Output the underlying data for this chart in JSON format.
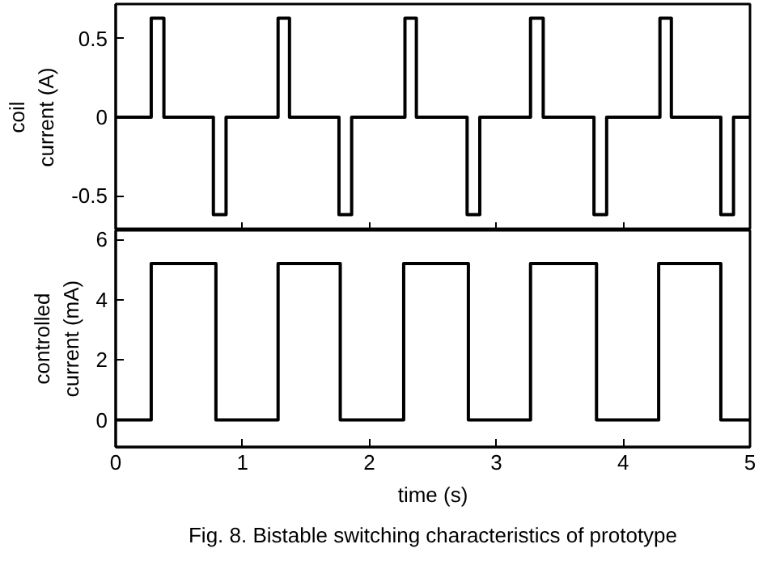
{
  "chart_data": [
    {
      "type": "line",
      "ylabel": "coil\ncurrent (A)",
      "xlim": [
        0,
        5
      ],
      "xticks": [
        0,
        1,
        2,
        3,
        4,
        5
      ],
      "ylim": [
        -0.72,
        0.72
      ],
      "yticks": [
        {
          "value": -0.5,
          "label": "-0.5"
        },
        0,
        0.5
      ],
      "tick_labels": "y",
      "grid": false,
      "series": [
        {
          "color": "#000000",
          "x": [
            0,
            0.28,
            0.28,
            0.38,
            0.38,
            0.77,
            0.77,
            0.87,
            0.87,
            1.28,
            1.28,
            1.37,
            1.37,
            1.76,
            1.76,
            1.86,
            1.86,
            2.28,
            2.28,
            2.37,
            2.37,
            2.77,
            2.77,
            2.87,
            2.87,
            3.27,
            3.27,
            3.37,
            3.37,
            3.77,
            3.77,
            3.87,
            3.87,
            4.29,
            4.29,
            4.38,
            4.38,
            4.77,
            4.77,
            4.87,
            4.87,
            5
          ],
          "values": [
            0,
            0,
            0.63,
            0.63,
            0,
            0,
            -0.62,
            -0.62,
            0,
            0,
            0.63,
            0.63,
            0,
            0,
            -0.62,
            -0.62,
            0,
            0,
            0.63,
            0.63,
            0,
            0,
            -0.62,
            -0.62,
            0,
            0,
            0.63,
            0.63,
            0,
            0,
            -0.62,
            -0.62,
            0,
            0,
            0.63,
            0.63,
            0,
            0,
            -0.62,
            -0.62,
            0,
            0
          ]
        }
      ]
    },
    {
      "type": "line",
      "xlabel": "time (s)",
      "ylabel": "controlled\ncurrent (mA)",
      "xlim": [
        0,
        5
      ],
      "xticks": [
        0,
        1,
        2,
        3,
        4,
        5
      ],
      "ylim": [
        -0.9,
        6.3
      ],
      "yticks": [
        0,
        2,
        4,
        6
      ],
      "grid": false,
      "annotations": [
        "Fig. 8. Bistable switching characteristics of prototype"
      ],
      "series": [
        {
          "color": "#000000",
          "x": [
            0,
            0.28,
            0.28,
            0.79,
            0.79,
            1.28,
            1.28,
            1.77,
            1.77,
            2.27,
            2.27,
            2.78,
            2.78,
            3.27,
            3.27,
            3.79,
            3.79,
            4.28,
            4.28,
            4.77,
            4.77,
            5
          ],
          "values": [
            0,
            0,
            5.2,
            5.2,
            0,
            0,
            5.2,
            5.2,
            0,
            0,
            5.2,
            5.2,
            0,
            0,
            5.2,
            5.2,
            0,
            0,
            5.2,
            5.2,
            0,
            0
          ]
        }
      ]
    }
  ]
}
